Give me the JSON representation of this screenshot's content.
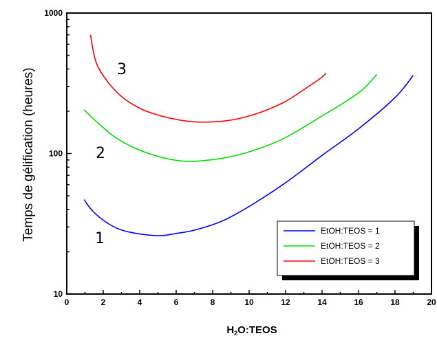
{
  "chart_data": {
    "type": "line",
    "ylabel": "Temps de gélification (heures)",
    "xlabel_parts": {
      "prefix": "H",
      "subscript": "2",
      "suffix": "O:TEOS"
    },
    "xlim": [
      0,
      20
    ],
    "ylim": [
      10,
      1000
    ],
    "yscale": "log",
    "x_ticks": [
      0,
      2,
      4,
      6,
      8,
      10,
      12,
      14,
      16,
      18,
      20
    ],
    "y_ticks": [
      10,
      100,
      1000
    ],
    "legend_position": "bottom-right",
    "series": [
      {
        "name": "EtOH:TEOS = 1",
        "label": "1",
        "color": "#0000ff",
        "points": [
          [
            0.95,
            47
          ],
          [
            1.5,
            38
          ],
          [
            2.5,
            30.5
          ],
          [
            3.5,
            27.5
          ],
          [
            5.0,
            26
          ],
          [
            6.0,
            27
          ],
          [
            7.0,
            28.5
          ],
          [
            8.5,
            33
          ],
          [
            10.0,
            42
          ],
          [
            12.0,
            62
          ],
          [
            14.0,
            97
          ],
          [
            16.0,
            150
          ],
          [
            18.0,
            250
          ],
          [
            19.0,
            360
          ]
        ]
      },
      {
        "name": "EtOH:TEOS = 2",
        "label": "2",
        "color": "#00dd00",
        "points": [
          [
            0.95,
            205
          ],
          [
            1.5,
            175
          ],
          [
            2.5,
            135
          ],
          [
            3.5,
            113
          ],
          [
            4.5,
            100
          ],
          [
            5.5,
            92
          ],
          [
            6.5,
            88
          ],
          [
            7.5,
            89
          ],
          [
            9.0,
            95
          ],
          [
            10.5,
            108
          ],
          [
            12.0,
            130
          ],
          [
            14.0,
            185
          ],
          [
            16.0,
            270
          ],
          [
            17.0,
            365
          ]
        ]
      },
      {
        "name": "EtOH:TEOS = 3",
        "label": "3",
        "color": "#ff0000",
        "points": [
          [
            1.3,
            700
          ],
          [
            1.6,
            450
          ],
          [
            2.2,
            330
          ],
          [
            3.0,
            255
          ],
          [
            4.0,
            210
          ],
          [
            5.0,
            188
          ],
          [
            6.0,
            175
          ],
          [
            7.0,
            168
          ],
          [
            8.0,
            168
          ],
          [
            9.0,
            173
          ],
          [
            10.0,
            185
          ],
          [
            11.0,
            205
          ],
          [
            12.0,
            235
          ],
          [
            13.0,
            285
          ],
          [
            14.0,
            350
          ],
          [
            14.2,
            375
          ]
        ]
      }
    ]
  }
}
